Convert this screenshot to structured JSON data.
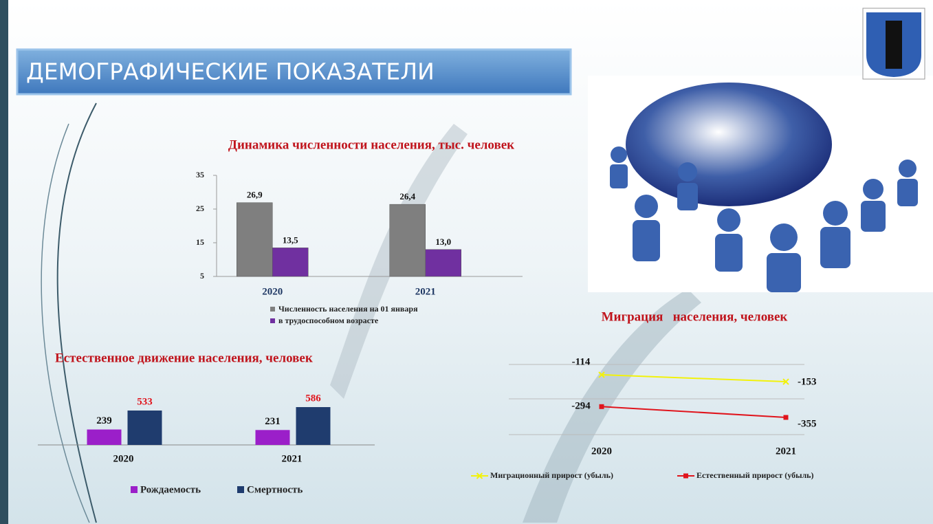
{
  "header": {
    "title": "ДЕМОГРАФИЧЕСКИЕ ПОКАЗАТЕЛИ"
  },
  "chart_data": [
    {
      "type": "bar",
      "title": "Динамика численности населения, тыс. человек",
      "categories": [
        "2020",
        "2021"
      ],
      "series": [
        {
          "name": "Численность населения на 01 января",
          "color": "#7f7f7f",
          "values": [
            26.9,
            26.4
          ],
          "value_labels": [
            "26,9",
            "26,4"
          ]
        },
        {
          "name": "в трудоспособном возрасте",
          "color": "#7030a0",
          "values": [
            13.5,
            13.0
          ],
          "value_labels": [
            "13,5",
            "13,0"
          ]
        }
      ],
      "ylim": [
        5,
        35
      ],
      "yticks": [
        5,
        15,
        25,
        35
      ]
    },
    {
      "type": "bar",
      "title": "Естественное движение населения, человек",
      "categories": [
        "2020",
        "2021"
      ],
      "series": [
        {
          "name": "Рождаемость",
          "color": "#9b1fc9",
          "label_color": "#111111",
          "values": [
            239,
            231
          ]
        },
        {
          "name": "Смертность",
          "color": "#1f3c6e",
          "label_color": "#e0141c",
          "values": [
            533,
            586
          ]
        }
      ]
    },
    {
      "type": "line",
      "title": "Миграция   населения, человек",
      "categories": [
        "2020",
        "2021"
      ],
      "series": [
        {
          "name": "Миграционный прирост (убыль)",
          "color": "#f2f20a",
          "marker": "x",
          "values": [
            -114,
            -153
          ]
        },
        {
          "name": "Естественный прирост (убыль)",
          "color": "#e0141c",
          "marker": "square",
          "values": [
            -294,
            -355
          ]
        }
      ]
    }
  ]
}
